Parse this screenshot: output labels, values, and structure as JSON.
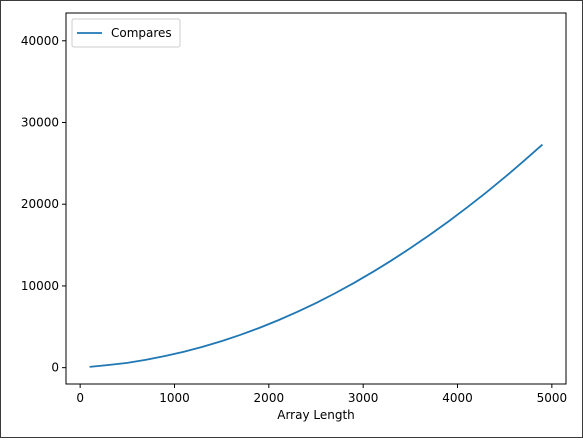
{
  "chart_data": {
    "type": "line",
    "title": "",
    "xlabel": "Array Length",
    "ylabel": "",
    "xlim": [
      -150,
      5150
    ],
    "ylim": [
      -2000,
      43400
    ],
    "x_ticks": [
      0,
      1000,
      2000,
      3000,
      4000,
      5000
    ],
    "y_ticks": [
      0,
      10000,
      20000,
      30000,
      40000
    ],
    "grid": false,
    "legend_position": "top-left",
    "series": [
      {
        "name": "Compares",
        "color": "#1f77b4",
        "x": [
          100,
          300,
          500,
          700,
          900,
          1100,
          1300,
          1500,
          1700,
          1900,
          2100,
          2300,
          2500,
          2700,
          2900,
          3100,
          3300,
          3500,
          3700,
          3900,
          4100,
          4300,
          4500,
          4700,
          4900
        ],
        "y": [
          100,
          320,
          590,
          970,
          1430,
          1950,
          2560,
          3250,
          4020,
          4870,
          5800,
          6820,
          7910,
          9090,
          10350,
          11700,
          13120,
          14620,
          16200,
          17860,
          19590,
          21400,
          23290,
          25260,
          27300
        ]
      }
    ]
  }
}
